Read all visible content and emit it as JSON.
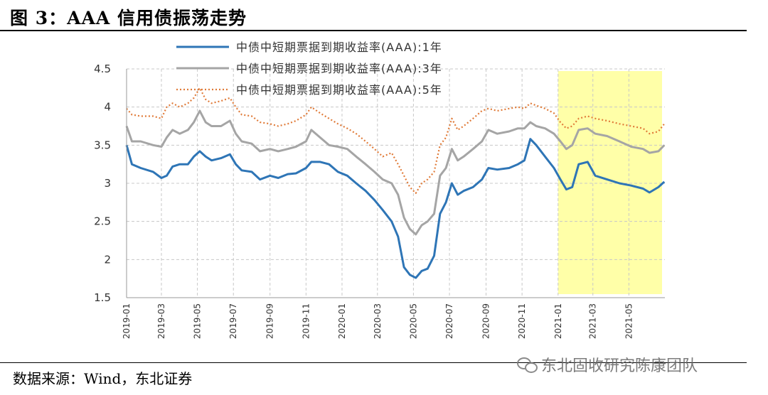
{
  "title": "图 3：AAA 信用债振荡走势",
  "source": "数据来源：Wind，东北证券",
  "watermark": "东北固收研究陈康团队",
  "colors": {
    "series_1y": "#2e75b6",
    "series_3y": "#a5a5a5",
    "series_5y": "#e07b39",
    "highlight": "#ffff99"
  },
  "chart_data": {
    "type": "line",
    "title": "",
    "xlabel": "",
    "ylabel": "",
    "ylim": [
      1.5,
      4.5
    ],
    "yticks": [
      "1.5",
      "2",
      "2.5",
      "3",
      "3.5",
      "4",
      "4.5"
    ],
    "xlim": [
      "2019-01",
      "2021-07"
    ],
    "xticks": [
      "2019-01",
      "2019-03",
      "2019-05",
      "2019-07",
      "2019-09",
      "2019-11",
      "2020-01",
      "2020-03",
      "2020-05",
      "2020-07",
      "2020-09",
      "2020-11",
      "2021-01",
      "2021-03",
      "2021-05"
    ],
    "grid": true,
    "legend_position": "top",
    "highlight_region": {
      "from": "2021-01",
      "to": "2021-07"
    },
    "series": [
      {
        "name": "中债中短期票据到期收益率(AAA):1年",
        "style": "solid",
        "points": [
          [
            "2019-01-01",
            3.5
          ],
          [
            "2019-01-10",
            3.25
          ],
          [
            "2019-01-25",
            3.2
          ],
          [
            "2019-02-15",
            3.15
          ],
          [
            "2019-03-01",
            3.07
          ],
          [
            "2019-03-10",
            3.1
          ],
          [
            "2019-03-20",
            3.22
          ],
          [
            "2019-04-01",
            3.25
          ],
          [
            "2019-04-15",
            3.25
          ],
          [
            "2019-04-25",
            3.35
          ],
          [
            "2019-05-05",
            3.42
          ],
          [
            "2019-05-15",
            3.35
          ],
          [
            "2019-05-25",
            3.3
          ],
          [
            "2019-06-10",
            3.33
          ],
          [
            "2019-06-25",
            3.38
          ],
          [
            "2019-07-05",
            3.25
          ],
          [
            "2019-07-15",
            3.17
          ],
          [
            "2019-08-01",
            3.15
          ],
          [
            "2019-08-15",
            3.05
          ],
          [
            "2019-09-01",
            3.1
          ],
          [
            "2019-09-15",
            3.07
          ],
          [
            "2019-10-01",
            3.12
          ],
          [
            "2019-10-15",
            3.13
          ],
          [
            "2019-11-01",
            3.2
          ],
          [
            "2019-11-10",
            3.28
          ],
          [
            "2019-11-25",
            3.28
          ],
          [
            "2019-12-10",
            3.25
          ],
          [
            "2019-12-25",
            3.15
          ],
          [
            "2020-01-10",
            3.1
          ],
          [
            "2020-01-25",
            3.0
          ],
          [
            "2020-02-10",
            2.9
          ],
          [
            "2020-02-25",
            2.78
          ],
          [
            "2020-03-10",
            2.65
          ],
          [
            "2020-03-25",
            2.5
          ],
          [
            "2020-04-05",
            2.3
          ],
          [
            "2020-04-15",
            1.9
          ],
          [
            "2020-04-25",
            1.8
          ],
          [
            "2020-05-05",
            1.76
          ],
          [
            "2020-05-15",
            1.85
          ],
          [
            "2020-05-25",
            1.88
          ],
          [
            "2020-06-05",
            2.05
          ],
          [
            "2020-06-15",
            2.6
          ],
          [
            "2020-06-25",
            2.75
          ],
          [
            "2020-07-05",
            3.0
          ],
          [
            "2020-07-15",
            2.85
          ],
          [
            "2020-07-25",
            2.9
          ],
          [
            "2020-08-10",
            2.95
          ],
          [
            "2020-08-25",
            3.05
          ],
          [
            "2020-09-05",
            3.2
          ],
          [
            "2020-09-20",
            3.18
          ],
          [
            "2020-10-10",
            3.2
          ],
          [
            "2020-10-25",
            3.25
          ],
          [
            "2020-11-05",
            3.3
          ],
          [
            "2020-11-15",
            3.58
          ],
          [
            "2020-11-25",
            3.5
          ],
          [
            "2020-12-10",
            3.35
          ],
          [
            "2020-12-25",
            3.2
          ],
          [
            "2021-01-05",
            3.05
          ],
          [
            "2021-01-15",
            2.92
          ],
          [
            "2021-01-25",
            2.95
          ],
          [
            "2021-02-05",
            3.25
          ],
          [
            "2021-02-20",
            3.28
          ],
          [
            "2021-03-05",
            3.1
          ],
          [
            "2021-03-25",
            3.05
          ],
          [
            "2021-04-15",
            3.0
          ],
          [
            "2021-05-05",
            2.97
          ],
          [
            "2021-05-25",
            2.93
          ],
          [
            "2021-06-05",
            2.88
          ],
          [
            "2021-06-20",
            2.95
          ],
          [
            "2021-06-30",
            3.02
          ]
        ]
      },
      {
        "name": "中债中短期票据到期收益率(AAA):3年",
        "style": "solid",
        "points": [
          [
            "2019-01-01",
            3.75
          ],
          [
            "2019-01-10",
            3.55
          ],
          [
            "2019-01-25",
            3.55
          ],
          [
            "2019-02-15",
            3.5
          ],
          [
            "2019-03-01",
            3.48
          ],
          [
            "2019-03-10",
            3.6
          ],
          [
            "2019-03-20",
            3.7
          ],
          [
            "2019-04-01",
            3.65
          ],
          [
            "2019-04-15",
            3.7
          ],
          [
            "2019-04-25",
            3.8
          ],
          [
            "2019-05-05",
            3.95
          ],
          [
            "2019-05-15",
            3.8
          ],
          [
            "2019-05-25",
            3.75
          ],
          [
            "2019-06-10",
            3.75
          ],
          [
            "2019-06-25",
            3.82
          ],
          [
            "2019-07-05",
            3.65
          ],
          [
            "2019-07-15",
            3.55
          ],
          [
            "2019-08-01",
            3.52
          ],
          [
            "2019-08-15",
            3.42
          ],
          [
            "2019-09-01",
            3.45
          ],
          [
            "2019-09-15",
            3.42
          ],
          [
            "2019-10-01",
            3.45
          ],
          [
            "2019-10-15",
            3.48
          ],
          [
            "2019-11-01",
            3.55
          ],
          [
            "2019-11-10",
            3.7
          ],
          [
            "2019-11-25",
            3.6
          ],
          [
            "2019-12-10",
            3.5
          ],
          [
            "2019-12-25",
            3.48
          ],
          [
            "2020-01-10",
            3.45
          ],
          [
            "2020-01-25",
            3.35
          ],
          [
            "2020-02-10",
            3.25
          ],
          [
            "2020-02-25",
            3.15
          ],
          [
            "2020-03-10",
            3.05
          ],
          [
            "2020-03-25",
            3.0
          ],
          [
            "2020-04-05",
            2.85
          ],
          [
            "2020-04-15",
            2.55
          ],
          [
            "2020-04-25",
            2.4
          ],
          [
            "2020-05-05",
            2.33
          ],
          [
            "2020-05-15",
            2.45
          ],
          [
            "2020-05-25",
            2.5
          ],
          [
            "2020-06-05",
            2.6
          ],
          [
            "2020-06-15",
            3.1
          ],
          [
            "2020-06-25",
            3.2
          ],
          [
            "2020-07-05",
            3.45
          ],
          [
            "2020-07-15",
            3.3
          ],
          [
            "2020-07-25",
            3.35
          ],
          [
            "2020-08-10",
            3.45
          ],
          [
            "2020-08-25",
            3.55
          ],
          [
            "2020-09-05",
            3.7
          ],
          [
            "2020-09-20",
            3.65
          ],
          [
            "2020-10-10",
            3.68
          ],
          [
            "2020-10-25",
            3.72
          ],
          [
            "2020-11-05",
            3.72
          ],
          [
            "2020-11-15",
            3.8
          ],
          [
            "2020-11-25",
            3.75
          ],
          [
            "2020-12-10",
            3.72
          ],
          [
            "2020-12-25",
            3.65
          ],
          [
            "2021-01-05",
            3.55
          ],
          [
            "2021-01-15",
            3.45
          ],
          [
            "2021-01-25",
            3.5
          ],
          [
            "2021-02-05",
            3.7
          ],
          [
            "2021-02-20",
            3.72
          ],
          [
            "2021-03-05",
            3.65
          ],
          [
            "2021-03-25",
            3.62
          ],
          [
            "2021-04-15",
            3.55
          ],
          [
            "2021-05-05",
            3.48
          ],
          [
            "2021-05-25",
            3.45
          ],
          [
            "2021-06-05",
            3.4
          ],
          [
            "2021-06-20",
            3.42
          ],
          [
            "2021-06-30",
            3.5
          ]
        ]
      },
      {
        "name": "中债中短期票据到期收益率(AAA):5年",
        "style": "dotted",
        "points": [
          [
            "2019-01-01",
            3.98
          ],
          [
            "2019-01-10",
            3.9
          ],
          [
            "2019-01-25",
            3.88
          ],
          [
            "2019-02-15",
            3.88
          ],
          [
            "2019-03-01",
            3.85
          ],
          [
            "2019-03-10",
            4.0
          ],
          [
            "2019-03-20",
            4.05
          ],
          [
            "2019-04-01",
            4.0
          ],
          [
            "2019-04-15",
            4.05
          ],
          [
            "2019-04-25",
            4.12
          ],
          [
            "2019-05-05",
            4.25
          ],
          [
            "2019-05-15",
            4.1
          ],
          [
            "2019-05-25",
            4.05
          ],
          [
            "2019-06-10",
            4.08
          ],
          [
            "2019-06-25",
            4.12
          ],
          [
            "2019-07-05",
            4.0
          ],
          [
            "2019-07-15",
            3.9
          ],
          [
            "2019-08-01",
            3.88
          ],
          [
            "2019-08-15",
            3.8
          ],
          [
            "2019-09-01",
            3.78
          ],
          [
            "2019-09-15",
            3.75
          ],
          [
            "2019-10-01",
            3.78
          ],
          [
            "2019-10-15",
            3.82
          ],
          [
            "2019-11-01",
            3.9
          ],
          [
            "2019-11-10",
            4.0
          ],
          [
            "2019-11-25",
            3.92
          ],
          [
            "2019-12-10",
            3.85
          ],
          [
            "2019-12-25",
            3.78
          ],
          [
            "2020-01-10",
            3.72
          ],
          [
            "2020-01-25",
            3.65
          ],
          [
            "2020-02-10",
            3.55
          ],
          [
            "2020-02-25",
            3.45
          ],
          [
            "2020-03-10",
            3.35
          ],
          [
            "2020-03-25",
            3.4
          ],
          [
            "2020-04-05",
            3.25
          ],
          [
            "2020-04-15",
            3.1
          ],
          [
            "2020-04-25",
            2.95
          ],
          [
            "2020-05-05",
            2.87
          ],
          [
            "2020-05-15",
            3.0
          ],
          [
            "2020-05-25",
            3.05
          ],
          [
            "2020-06-05",
            3.15
          ],
          [
            "2020-06-15",
            3.5
          ],
          [
            "2020-06-25",
            3.6
          ],
          [
            "2020-07-05",
            3.85
          ],
          [
            "2020-07-15",
            3.7
          ],
          [
            "2020-07-25",
            3.75
          ],
          [
            "2020-08-10",
            3.85
          ],
          [
            "2020-08-25",
            3.95
          ],
          [
            "2020-09-05",
            3.98
          ],
          [
            "2020-09-20",
            3.95
          ],
          [
            "2020-10-10",
            3.98
          ],
          [
            "2020-10-25",
            4.0
          ],
          [
            "2020-11-05",
            3.98
          ],
          [
            "2020-11-15",
            4.05
          ],
          [
            "2020-11-25",
            4.02
          ],
          [
            "2020-12-10",
            3.98
          ],
          [
            "2020-12-25",
            3.92
          ],
          [
            "2021-01-05",
            3.8
          ],
          [
            "2021-01-15",
            3.72
          ],
          [
            "2021-01-25",
            3.75
          ],
          [
            "2021-02-05",
            3.85
          ],
          [
            "2021-02-20",
            3.88
          ],
          [
            "2021-03-05",
            3.85
          ],
          [
            "2021-03-25",
            3.82
          ],
          [
            "2021-04-15",
            3.78
          ],
          [
            "2021-05-05",
            3.75
          ],
          [
            "2021-05-25",
            3.72
          ],
          [
            "2021-06-05",
            3.65
          ],
          [
            "2021-06-20",
            3.68
          ],
          [
            "2021-06-30",
            3.78
          ]
        ]
      }
    ]
  }
}
